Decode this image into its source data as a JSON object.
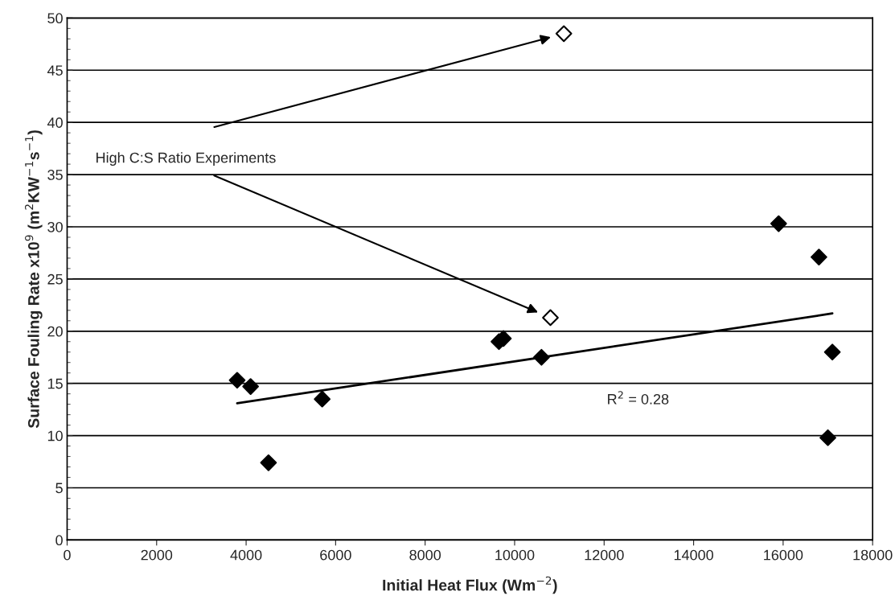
{
  "chart_data": {
    "type": "scatter",
    "xlabel": "Initial Heat Flux (Wm$^{−2}$)",
    "ylabel": "Surface Fouling Rate x10$^{9}$ (m$^{2}$KW$^{−1}$s$^{−1}$)",
    "series": [
      {
        "color": "#000000",
        "marker": "diamond",
        "x": [
          3800,
          4100,
          4500,
          5700,
          9650,
          9750,
          10600,
          15900,
          16800,
          17100,
          17000
        ],
        "values": [
          15.3,
          14.7,
          7.4,
          13.5,
          19.0,
          19.3,
          17.5,
          30.3,
          27.1,
          18.0,
          9.8
        ]
      },
      {
        "color": "#ffffff",
        "marker": "diamond",
        "x": [
          10800,
          11100
        ],
        "values": [
          21.3,
          48.5
        ]
      },
      {
        "type": "line",
        "color": "#000000",
        "marker": "none",
        "line_style": "solid",
        "x": [
          3800,
          17100
        ],
        "values": [
          13.1,
          21.7
        ]
      }
    ],
    "annotations": [
      "High C:S Ratio Experiments",
      "R$^{2}$ = 0.28"
    ],
    "xlim": [
      0,
      18000
    ],
    "xticks": [
      0,
      2000,
      4000,
      6000,
      8000,
      10000,
      12000,
      14000,
      16000,
      18000
    ],
    "ylim": [
      0,
      50
    ],
    "yticks": [
      0,
      5,
      10,
      15,
      20,
      25,
      30,
      35,
      40,
      45,
      50
    ],
    "grid": "y",
    "legend": false
  }
}
